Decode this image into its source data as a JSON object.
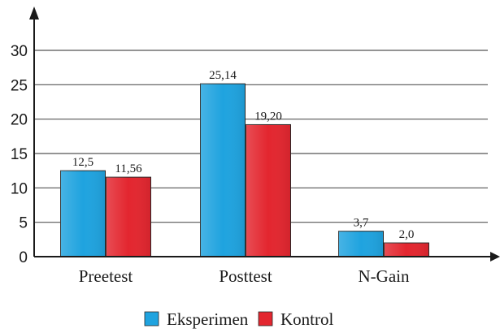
{
  "chart_data": {
    "type": "bar",
    "categories": [
      "Preetest",
      "Posttest",
      "N-Gain"
    ],
    "series": [
      {
        "name": "Eksperimen",
        "color": "#1fa3df",
        "values": [
          12.5,
          25.14,
          3.7
        ],
        "labels": [
          "12,5",
          "25,14",
          "3,7"
        ]
      },
      {
        "name": "Kontrol",
        "color": "#e3262f",
        "values": [
          11.56,
          19.2,
          2.0
        ],
        "labels": [
          "11,56",
          "19,20",
          "2,0"
        ]
      }
    ],
    "title": "",
    "xlabel": "",
    "ylabel": "",
    "ylim": [
      0,
      30
    ],
    "yticks": [
      "0",
      "5",
      "10",
      "15",
      "20",
      "25",
      "30"
    ],
    "grid": true,
    "legend_position": "bottom"
  }
}
